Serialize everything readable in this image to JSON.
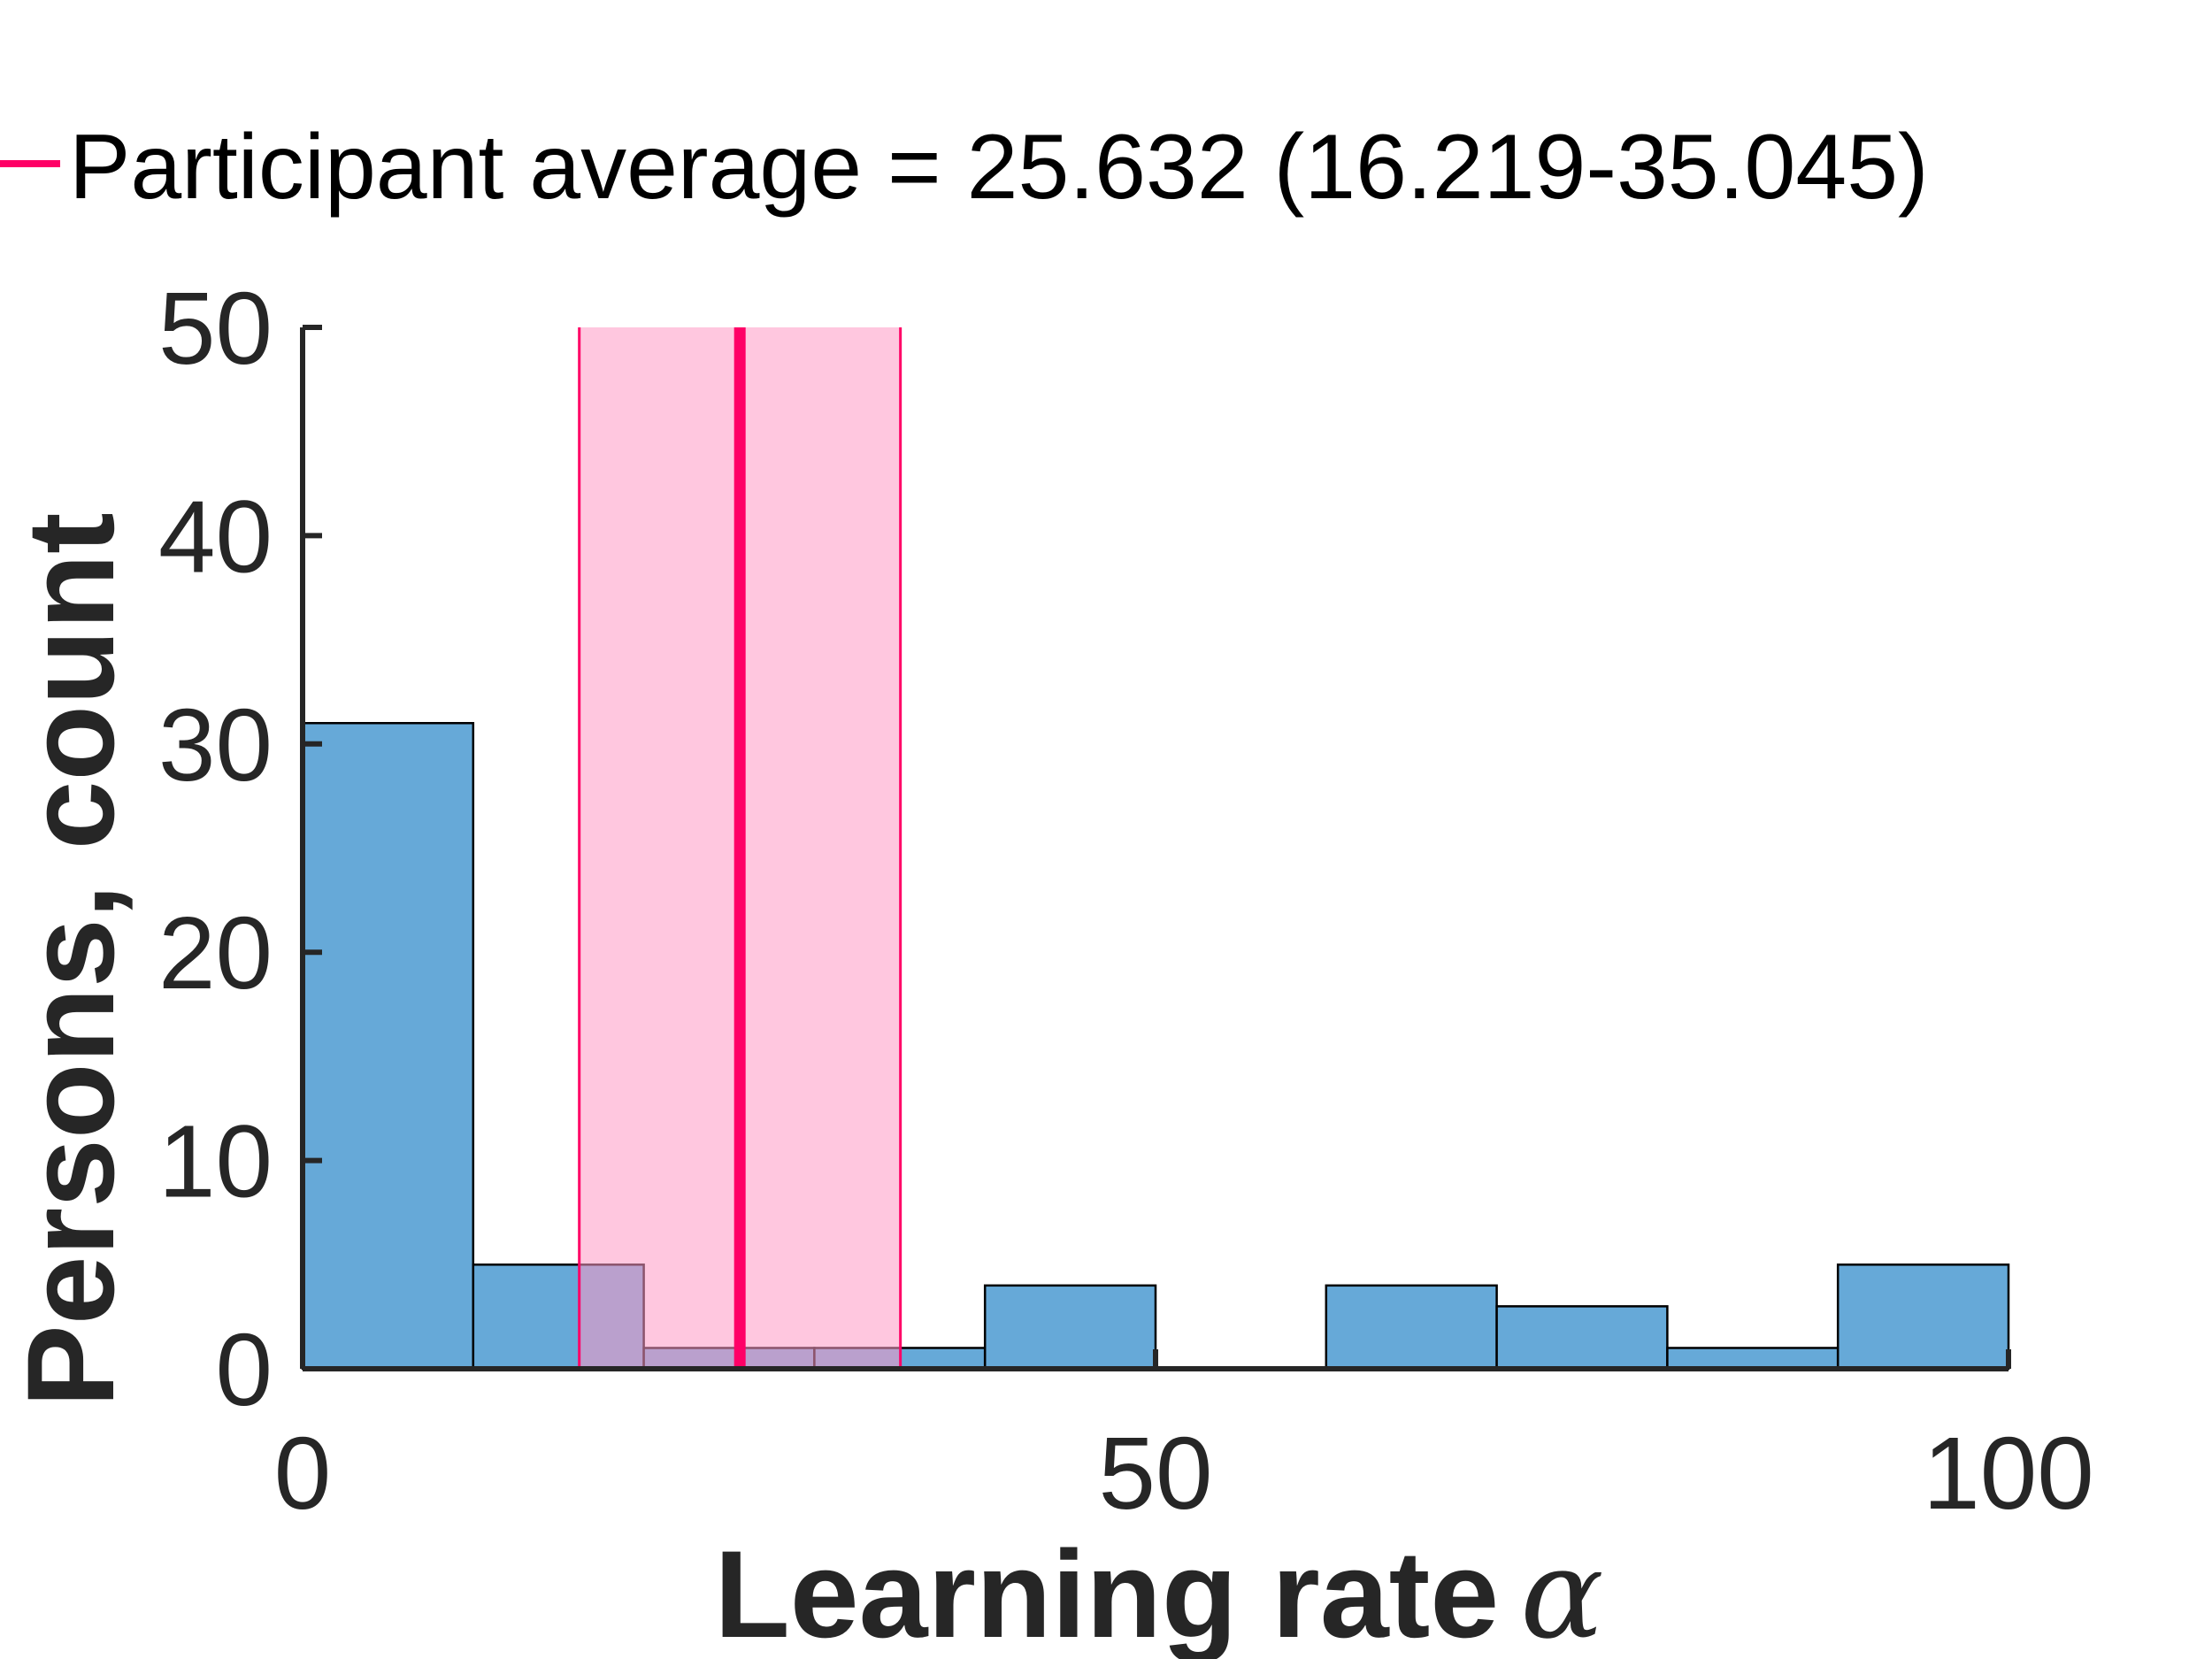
{
  "chart_data": {
    "type": "bar",
    "subtype": "histogram",
    "bin_edges": [
      0,
      10,
      20,
      30,
      40,
      50,
      60,
      70,
      80,
      90,
      100
    ],
    "values": [
      31,
      5,
      1,
      1,
      4,
      0,
      4,
      3,
      1,
      5
    ],
    "xlabel": "Learning rate",
    "xlabel_symbol": "α",
    "ylabel": "Persons, count",
    "xlim": [
      0,
      100
    ],
    "ylim": [
      0,
      50
    ],
    "xticks": [
      0,
      50,
      100
    ],
    "yticks": [
      0,
      10,
      20,
      30,
      40,
      50
    ],
    "grid": false,
    "legend_position": "top",
    "average": {
      "label": "Participant average = 25.632 (16.219-35.045)",
      "value": 25.632,
      "ci_low": 16.219,
      "ci_high": 35.045
    },
    "colors": {
      "bar_fill": "#66a9d8",
      "bar_edge": "#000000",
      "average_line": "#ff0066",
      "ci_band": "#ff99c4",
      "axis": "#262626"
    }
  }
}
